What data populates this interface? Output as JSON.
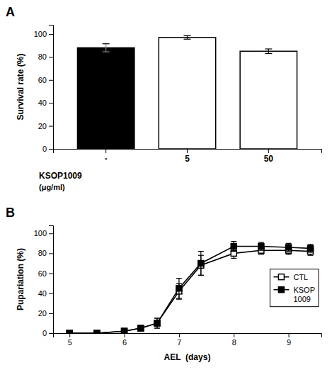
{
  "chart_data": [
    {
      "type": "bar",
      "title": "A",
      "categories": [
        "-",
        "5",
        "50"
      ],
      "values": [
        88,
        97,
        85
      ],
      "errors": [
        3.5,
        1.5,
        2.0
      ],
      "colors": [
        "black",
        "white",
        "white"
      ],
      "ylabel": "Survival rate (%)",
      "xlabel": "KSOP1009",
      "annotations": [
        "(μg/ml)"
      ],
      "ylim": [
        0,
        108
      ],
      "yticks": [
        0,
        20,
        40,
        60,
        80,
        100
      ]
    },
    {
      "type": "line",
      "title": "B",
      "x": [
        5,
        5.5,
        6,
        6.3,
        6.6,
        7,
        7.4,
        8,
        8.5,
        9,
        9.4
      ],
      "series": [
        {
          "name": "CTL",
          "color": "black",
          "marker": "open-square",
          "values": [
            0,
            0,
            2,
            5,
            10,
            42,
            68,
            80,
            83,
            83,
            82
          ],
          "errors": [
            0,
            0,
            1.5,
            2,
            5,
            8,
            10,
            5,
            4,
            4,
            4
          ]
        },
        {
          "name": "KSOP\n1009",
          "color": "black",
          "marker": "square",
          "values": [
            0,
            0,
            2,
            5,
            10,
            45,
            70,
            87,
            87,
            86,
            85
          ],
          "errors": [
            0,
            0,
            1.5,
            2,
            5,
            10,
            12,
            5,
            4,
            4,
            4
          ]
        }
      ],
      "ylabel": "Pupariation (%)",
      "xlabel": "AEL  (days)",
      "xlim": [
        4.7,
        9.6
      ],
      "xticks": [
        5,
        6,
        7,
        8,
        9
      ],
      "ylim": [
        0,
        108
      ],
      "yticks": [
        0,
        20,
        40,
        60,
        80,
        100
      ],
      "legend": "right"
    }
  ]
}
